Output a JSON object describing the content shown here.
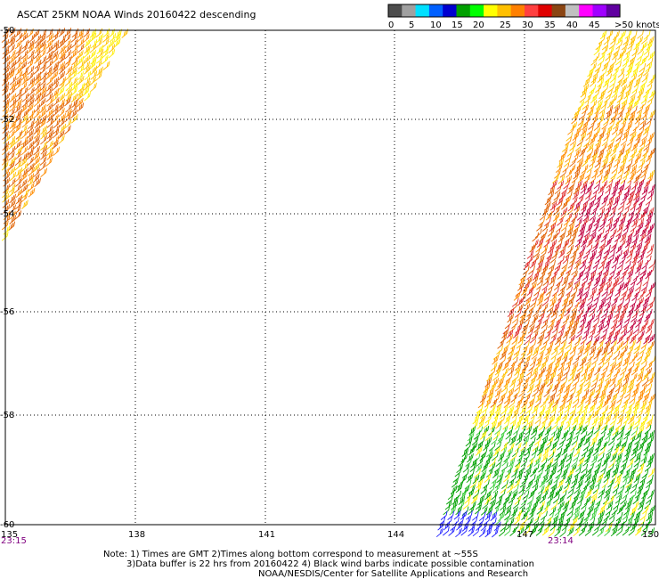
{
  "title": "ASCAT 25KM NOAA Winds 20160422 descending",
  "legend": {
    "ticks": [
      "0",
      "5",
      "10",
      "15",
      "20",
      "25",
      "30",
      "35",
      "40",
      "45",
      ">50 knots"
    ],
    "colors": [
      "#4d4d4d",
      "#a0a0a0",
      "#00e0ff",
      "#0060ff",
      "#0000d0",
      "#00a000",
      "#00ff00",
      "#ffff00",
      "#ffc000",
      "#ff8000",
      "#ff4040",
      "#e00000",
      "#8b4513",
      "#c0c0c0",
      "#ff00ff",
      "#a000ff",
      "#6000a0"
    ]
  },
  "lat_labels": [
    "-50",
    "-52",
    "-54",
    "-56",
    "-58",
    "-60"
  ],
  "lon_labels": [
    "135",
    "138",
    "141",
    "144",
    "147",
    "150"
  ],
  "pass_times": [
    "23:15",
    "23:14"
  ],
  "notes": {
    "line1": "Note: 1) Times are GMT 2)Times along bottom correspond to measurement at ~55S",
    "line2": "3)Data buffer is 22 hrs from 20160422 4) Black wind barbs indicate possible contamination",
    "line3": "NOAA/NESDIS/Center for Satellite Applications and Research"
  },
  "wind_colors": {
    "green": "#00a000",
    "lime": "#40d040",
    "yellow": "#ffee00",
    "gold": "#ffc000",
    "orange": "#ff8c00",
    "darkorange": "#e06000",
    "red": "#e03030",
    "crimson": "#c00040",
    "blue": "#2020ff"
  }
}
